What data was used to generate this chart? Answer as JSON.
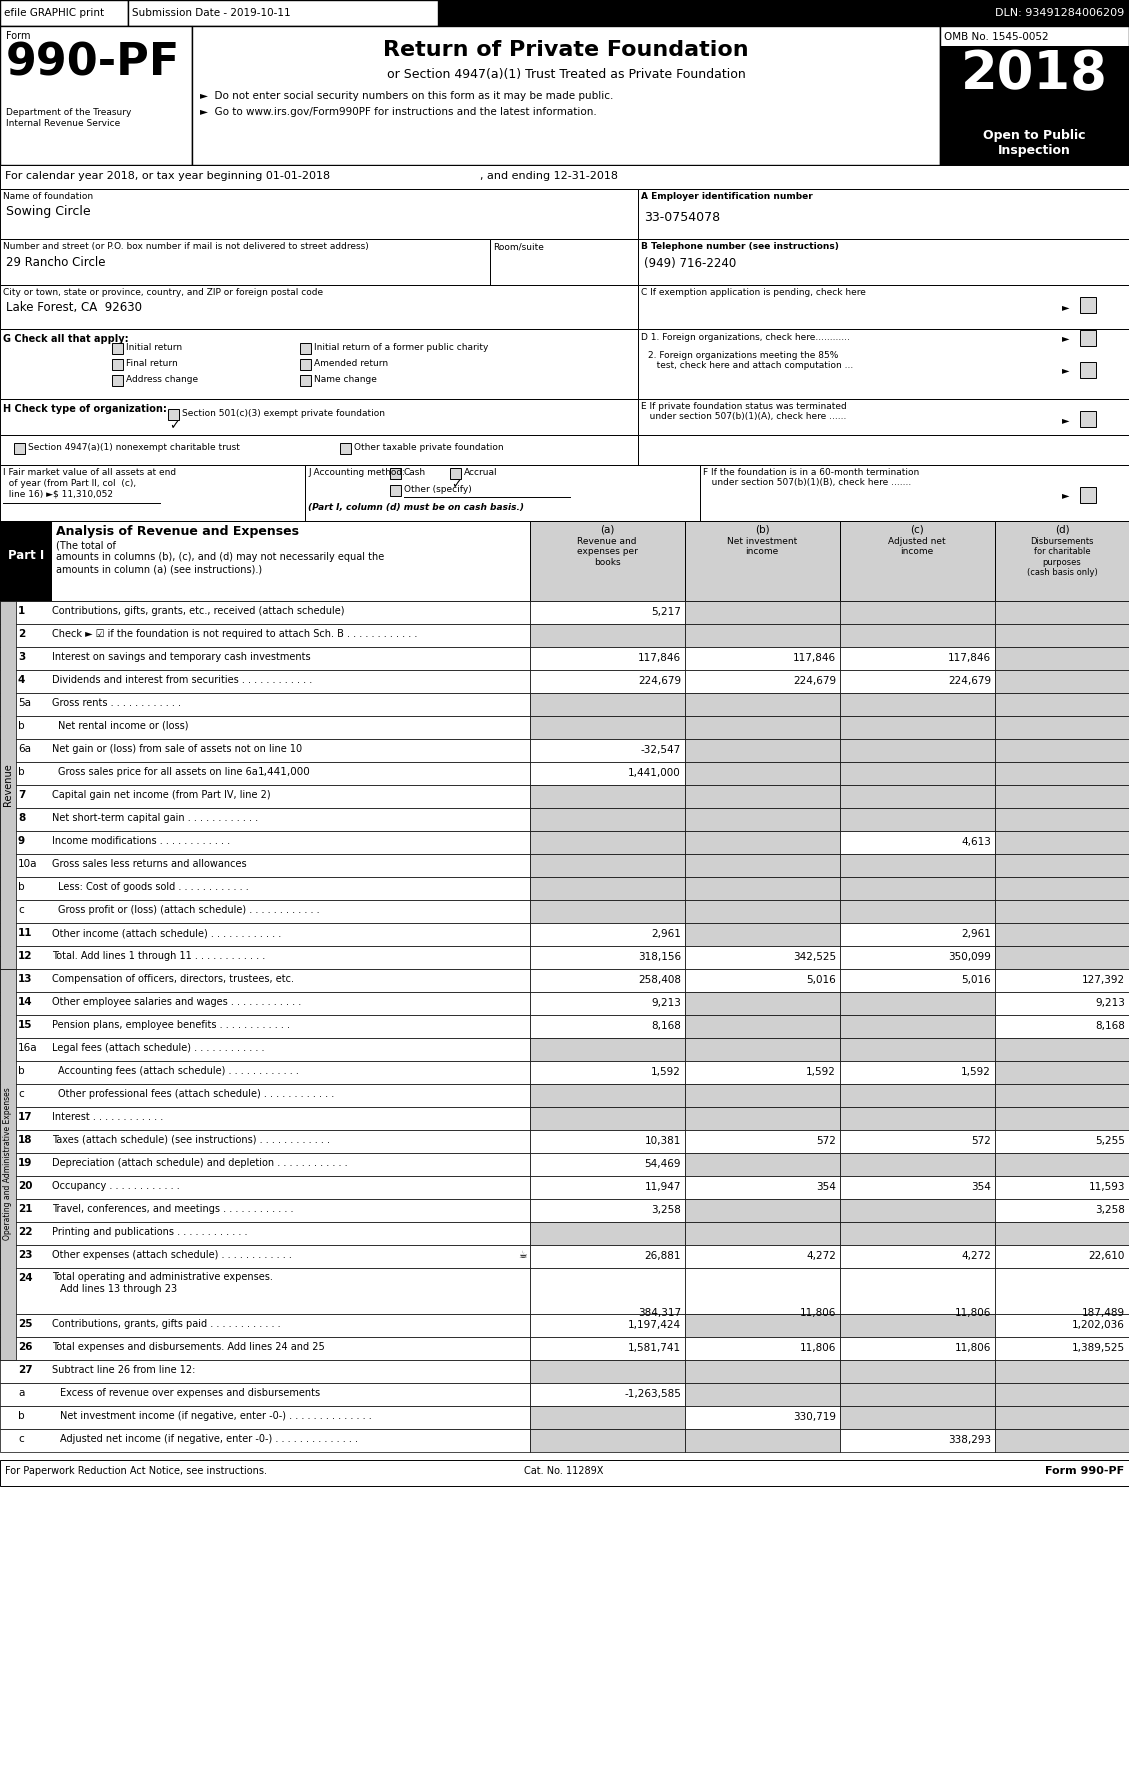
{
  "efile_text": "efile GRAPHIC print",
  "submission_date": "Submission Date - 2019-10-11",
  "dln": "DLN: 93491284006209",
  "omb": "OMB No. 1545-0052",
  "year": "2018",
  "open_text": "Open to Public\nInspection",
  "title_main": "Return of Private Foundation",
  "title_sub": "or Section 4947(a)(1) Trust Treated as Private Foundation",
  "bullet1": "►  Do not enter social security numbers on this form as it may be made public.",
  "bullet2": "►  Go to www.irs.gov/Form990PF for instructions and the latest information.",
  "calendar_year": "For calendar year 2018, or tax year beginning 01-01-2018",
  "ending": ", and ending 12-31-2018",
  "foundation_name_label": "Name of foundation",
  "foundation_name": "Sowing Circle",
  "ein_label": "A Employer identification number",
  "ein": "33-0754078",
  "address_label": "Number and street (or P.O. box number if mail is not delivered to street address)",
  "address": "29 Rancho Circle",
  "room_label": "Room/suite",
  "phone_label": "B Telephone number (see instructions)",
  "phone": "(949) 716-2240",
  "city_label": "City or town, state or province, country, and ZIP or foreign postal code",
  "city": "Lake Forest, CA  92630",
  "exempt_label": "C If exemption application is pending, check here",
  "d1_label": "D 1. Foreign organizations, check here............",
  "d2_label": "2. Foreign organizations meeting the 85%\n   test, check here and attach computation ...",
  "e_label": "E If private foundation status was terminated\n   under section 507(b)(1)(A), check here ......",
  "f_label": "F If the foundation is in a 60-month termination\n   under section 507(b)(1)(B), check here .......",
  "i_label": "I Fair market value of all assets at end\n  of year (from Part II, col  (c),\n  line 16) ►s 11,310,052",
  "j_note": "(Part I, column (d) must be on cash basis.)",
  "footer_left": "For Paperwork Reduction Act Notice, see instructions.",
  "footer_cat": "Cat. No. 11289X",
  "footer_right": "Form 990-PF",
  "revenue_rows": [
    {
      "num": "1",
      "label": "Contributions, gifts, grants, etc., received (attach schedule)",
      "dots": false,
      "a": "5,217",
      "b": "",
      "c": "",
      "d": "",
      "gray_d": true
    },
    {
      "num": "2",
      "label": "Check ► ☑ if the foundation is not required to attach Sch. B",
      "dots": true,
      "a": "",
      "b": "",
      "c": "",
      "d": "",
      "gray_d": true
    },
    {
      "num": "3",
      "label": "Interest on savings and temporary cash investments",
      "dots": false,
      "a": "117,846",
      "b": "117,846",
      "c": "117,846",
      "d": "",
      "gray_d": true
    },
    {
      "num": "4",
      "label": "Dividends and interest from securities",
      "dots": true,
      "a": "224,679",
      "b": "224,679",
      "c": "224,679",
      "d": "",
      "gray_d": true
    },
    {
      "num": "5a",
      "label": "Gross rents",
      "dots": true,
      "a": "",
      "b": "",
      "c": "",
      "d": "",
      "gray_d": true
    },
    {
      "num": "b",
      "label": "Net rental income or (loss)",
      "dots": false,
      "a": "",
      "b": "",
      "c": "",
      "d": "",
      "gray_d": true
    },
    {
      "num": "6a",
      "label": "Net gain or (loss) from sale of assets not on line 10",
      "dots": false,
      "a": "-32,547",
      "b": "",
      "c": "",
      "d": "",
      "gray_d": true
    },
    {
      "num": "b",
      "label": "Gross sales price for all assets on line 6a",
      "dots": false,
      "a": "1,441,000",
      "b": "",
      "c": "",
      "d": "",
      "gray_d": true,
      "inline_val": true
    },
    {
      "num": "7",
      "label": "Capital gain net income (from Part IV, line 2)",
      "dots": false,
      "a": "",
      "b": "",
      "c": "",
      "d": "",
      "gray_d": true
    },
    {
      "num": "8",
      "label": "Net short-term capital gain",
      "dots": true,
      "a": "",
      "b": "",
      "c": "",
      "d": "",
      "gray_d": true
    },
    {
      "num": "9",
      "label": "Income modifications",
      "dots": true,
      "a": "",
      "b": "",
      "c": "4,613",
      "d": "",
      "gray_d": true
    },
    {
      "num": "10a",
      "label": "Gross sales less returns and allowances",
      "dots": false,
      "a": "",
      "b": "",
      "c": "",
      "d": "",
      "gray_d": true
    },
    {
      "num": "b",
      "label": "Less: Cost of goods sold",
      "dots": true,
      "a": "",
      "b": "",
      "c": "",
      "d": "",
      "gray_d": true
    },
    {
      "num": "c",
      "label": "Gross profit or (loss) (attach schedule)",
      "dots": true,
      "a": "",
      "b": "",
      "c": "",
      "d": "",
      "gray_d": true
    },
    {
      "num": "11",
      "label": "Other income (attach schedule)",
      "dots": true,
      "a": "2,961",
      "b": "",
      "c": "2,961",
      "d": "",
      "gray_d": true
    },
    {
      "num": "12",
      "label": "Total. Add lines 1 through 11",
      "dots": true,
      "a": "318,156",
      "b": "342,525",
      "c": "350,099",
      "d": "",
      "gray_d": true
    }
  ],
  "expense_rows": [
    {
      "num": "13",
      "label": "Compensation of officers, directors, trustees, etc.",
      "dots": false,
      "a": "258,408",
      "b": "5,016",
      "c": "5,016",
      "d": "127,392",
      "gray_d": false
    },
    {
      "num": "14",
      "label": "Other employee salaries and wages",
      "dots": true,
      "a": "9,213",
      "b": "",
      "c": "",
      "d": "9,213",
      "gray_d": false
    },
    {
      "num": "15",
      "label": "Pension plans, employee benefits",
      "dots": true,
      "a": "8,168",
      "b": "",
      "c": "",
      "d": "8,168",
      "gray_d": false
    },
    {
      "num": "16a",
      "label": "Legal fees (attach schedule)",
      "dots": true,
      "a": "",
      "b": "",
      "c": "",
      "d": "",
      "gray_d": false
    },
    {
      "num": "b",
      "label": "Accounting fees (attach schedule)",
      "dots": true,
      "a": "1,592",
      "b": "1,592",
      "c": "1,592",
      "d": "",
      "gray_d": false
    },
    {
      "num": "c",
      "label": "Other professional fees (attach schedule)",
      "dots": true,
      "a": "",
      "b": "",
      "c": "",
      "d": "",
      "gray_d": false
    },
    {
      "num": "17",
      "label": "Interest",
      "dots": true,
      "a": "",
      "b": "",
      "c": "",
      "d": "",
      "gray_d": false
    },
    {
      "num": "18",
      "label": "Taxes (attach schedule) (see instructions)",
      "dots": true,
      "a": "10,381",
      "b": "572",
      "c": "572",
      "d": "5,255",
      "gray_d": false
    },
    {
      "num": "19",
      "label": "Depreciation (attach schedule) and depletion",
      "dots": true,
      "a": "54,469",
      "b": "",
      "c": "",
      "d": "",
      "gray_d": false
    },
    {
      "num": "20",
      "label": "Occupancy",
      "dots": true,
      "a": "11,947",
      "b": "354",
      "c": "354",
      "d": "11,593",
      "gray_d": false
    },
    {
      "num": "21",
      "label": "Travel, conferences, and meetings",
      "dots": true,
      "a": "3,258",
      "b": "",
      "c": "",
      "d": "3,258",
      "gray_d": false
    },
    {
      "num": "22",
      "label": "Printing and publications",
      "dots": true,
      "a": "",
      "b": "",
      "c": "",
      "d": "",
      "gray_d": false
    },
    {
      "num": "23",
      "label": "Other expenses (attach schedule)",
      "dots": true,
      "a": "26,881",
      "b": "4,272",
      "c": "4,272",
      "d": "22,610",
      "gray_d": false,
      "has_icon": true
    },
    {
      "num": "24",
      "label": "Total operating and administrative expenses.",
      "dots": false,
      "a": "384,317",
      "b": "11,806",
      "c": "11,806",
      "d": "187,489",
      "gray_d": false,
      "two_line": true,
      "line2": "Add lines 13 through 23"
    },
    {
      "num": "25",
      "label": "Contributions, grants, gifts paid",
      "dots": true,
      "a": "1,197,424",
      "b": "",
      "c": "",
      "d": "1,202,036",
      "gray_d": false
    },
    {
      "num": "26",
      "label": "Total expenses and disbursements. Add lines 24 and 25",
      "dots": false,
      "a": "1,581,741",
      "b": "11,806",
      "c": "11,806",
      "d": "1,389,525",
      "gray_d": false
    }
  ],
  "bottom_rows": [
    {
      "num": "27",
      "label": "Subtract line 26 from line 12:",
      "dots": false,
      "a": "",
      "b": "",
      "c": "",
      "d": ""
    },
    {
      "num": "a",
      "label": "Excess of revenue over expenses and disbursements",
      "dots": false,
      "a": "-1,263,585",
      "b": "",
      "c": "",
      "d": ""
    },
    {
      "num": "b",
      "label": "Net investment income (if negative, enter -0-)",
      "dots": true,
      "a": "",
      "b": "330,719",
      "c": "",
      "d": ""
    },
    {
      "num": "c",
      "label": "Adjusted net income (if negative, enter -0-)",
      "dots": true,
      "a": "",
      "b": "",
      "c": "338,293",
      "d": ""
    }
  ]
}
